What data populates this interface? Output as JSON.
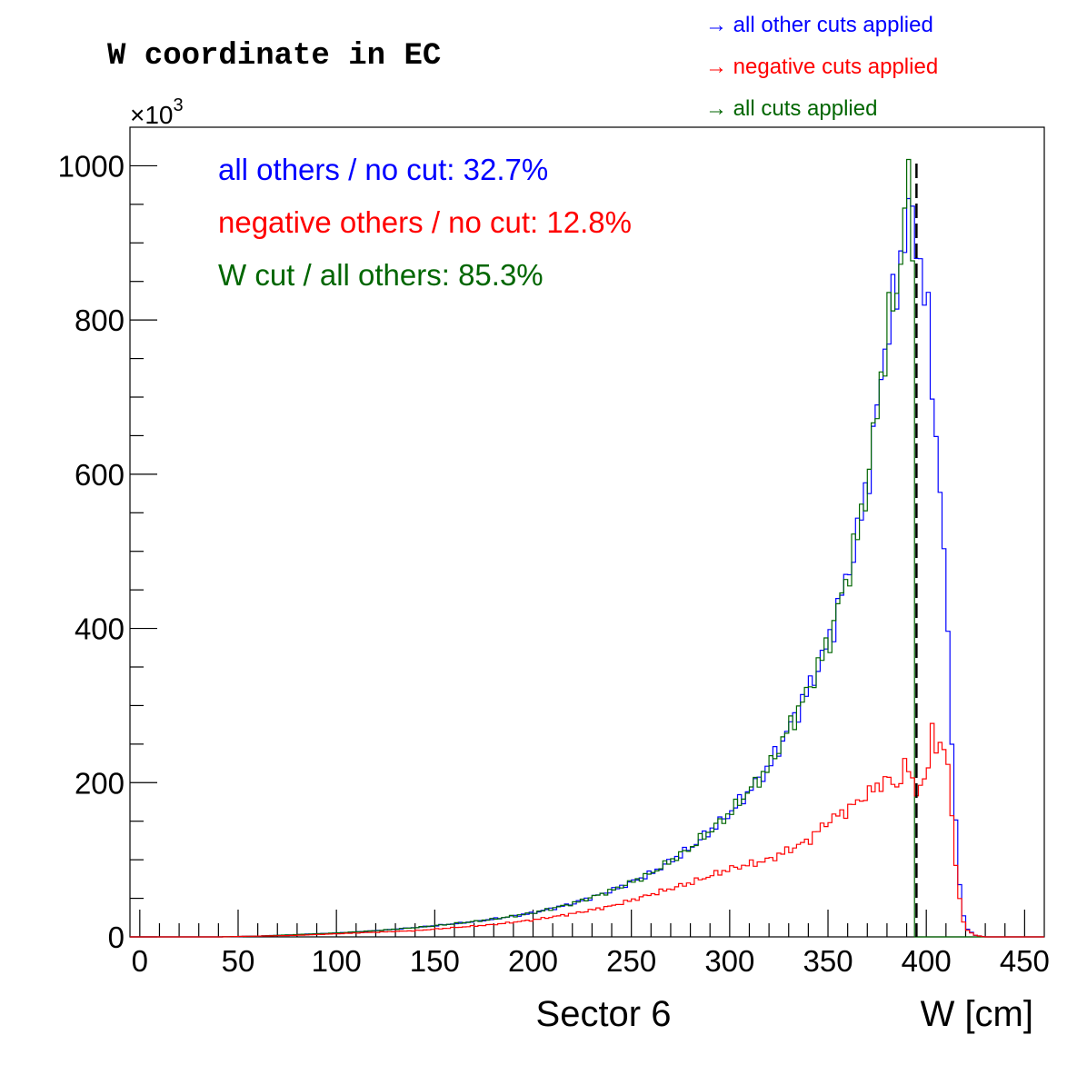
{
  "chart_data": {
    "type": "histogram",
    "title": "W coordinate in EC",
    "xlabel": "W [cm]",
    "sector_label": "Sector 6",
    "y_multiplier": "×10",
    "y_multiplier_exp": "3",
    "xlim": [
      -5,
      460
    ],
    "ylim": [
      0,
      1050
    ],
    "x_ticks": [
      0,
      50,
      100,
      150,
      200,
      250,
      300,
      350,
      400,
      450
    ],
    "y_ticks": [
      0,
      200,
      400,
      600,
      800,
      1000
    ],
    "legend": [
      {
        "label": "→ all other cuts applied",
        "color": "#0000ff"
      },
      {
        "label": "→ negative cuts applied",
        "color": "#ff0000"
      },
      {
        "label": "→ all cuts applied",
        "color": "#006600"
      }
    ],
    "annotations": [
      {
        "text": "all others / no cut:  32.7%",
        "color": "#0000ff"
      },
      {
        "text": "negative others / no cut:  12.8%",
        "color": "#ff0000"
      },
      {
        "text": "W cut / all others:  85.3%",
        "color": "#006600"
      }
    ],
    "cut_line": {
      "x": 395,
      "style": "dashed",
      "color": "#000000"
    },
    "series": [
      {
        "name": "all other cuts applied",
        "color": "#0000ff",
        "points": [
          [
            0,
            0
          ],
          [
            40,
            0
          ],
          [
            60,
            1
          ],
          [
            80,
            3
          ],
          [
            100,
            5
          ],
          [
            120,
            8
          ],
          [
            140,
            12
          ],
          [
            160,
            17
          ],
          [
            180,
            23
          ],
          [
            200,
            31
          ],
          [
            220,
            43
          ],
          [
            240,
            60
          ],
          [
            260,
            82
          ],
          [
            280,
            115
          ],
          [
            300,
            160
          ],
          [
            320,
            220
          ],
          [
            340,
            320
          ],
          [
            350,
            380
          ],
          [
            360,
            470
          ],
          [
            365,
            520
          ],
          [
            370,
            590
          ],
          [
            375,
            680
          ],
          [
            380,
            790
          ],
          [
            385,
            830
          ],
          [
            390,
            950
          ],
          [
            395,
            900
          ],
          [
            400,
            840
          ],
          [
            402,
            740
          ],
          [
            405,
            650
          ],
          [
            408,
            560
          ],
          [
            410,
            440
          ],
          [
            412,
            320
          ],
          [
            414,
            200
          ],
          [
            416,
            100
          ],
          [
            418,
            40
          ],
          [
            420,
            12
          ],
          [
            425,
            2
          ],
          [
            430,
            0
          ],
          [
            460,
            0
          ]
        ]
      },
      {
        "name": "all cuts applied",
        "color": "#006600",
        "points": [
          [
            0,
            0
          ],
          [
            40,
            0
          ],
          [
            60,
            1
          ],
          [
            80,
            3
          ],
          [
            100,
            5
          ],
          [
            120,
            8
          ],
          [
            140,
            12
          ],
          [
            160,
            17
          ],
          [
            180,
            23
          ],
          [
            200,
            31
          ],
          [
            220,
            43
          ],
          [
            240,
            60
          ],
          [
            260,
            82
          ],
          [
            280,
            115
          ],
          [
            300,
            160
          ],
          [
            320,
            220
          ],
          [
            340,
            320
          ],
          [
            350,
            380
          ],
          [
            360,
            470
          ],
          [
            365,
            520
          ],
          [
            370,
            590
          ],
          [
            375,
            680
          ],
          [
            380,
            790
          ],
          [
            385,
            830
          ],
          [
            390,
            990
          ],
          [
            393,
            900
          ],
          [
            395,
            0
          ],
          [
            460,
            0
          ]
        ]
      },
      {
        "name": "negative cuts applied",
        "color": "#ff0000",
        "points": [
          [
            0,
            0
          ],
          [
            40,
            0
          ],
          [
            60,
            1
          ],
          [
            80,
            2
          ],
          [
            100,
            4
          ],
          [
            120,
            6
          ],
          [
            140,
            8
          ],
          [
            160,
            12
          ],
          [
            180,
            16
          ],
          [
            200,
            22
          ],
          [
            220,
            30
          ],
          [
            240,
            40
          ],
          [
            260,
            55
          ],
          [
            280,
            70
          ],
          [
            300,
            88
          ],
          [
            320,
            100
          ],
          [
            340,
            125
          ],
          [
            350,
            150
          ],
          [
            360,
            165
          ],
          [
            370,
            185
          ],
          [
            380,
            205
          ],
          [
            385,
            195
          ],
          [
            390,
            225
          ],
          [
            395,
            190
          ],
          [
            400,
            200
          ],
          [
            403,
            275
          ],
          [
            406,
            235
          ],
          [
            410,
            250
          ],
          [
            412,
            200
          ],
          [
            414,
            120
          ],
          [
            416,
            65
          ],
          [
            418,
            30
          ],
          [
            420,
            10
          ],
          [
            425,
            2
          ],
          [
            430,
            0
          ],
          [
            460,
            0
          ]
        ]
      }
    ]
  }
}
